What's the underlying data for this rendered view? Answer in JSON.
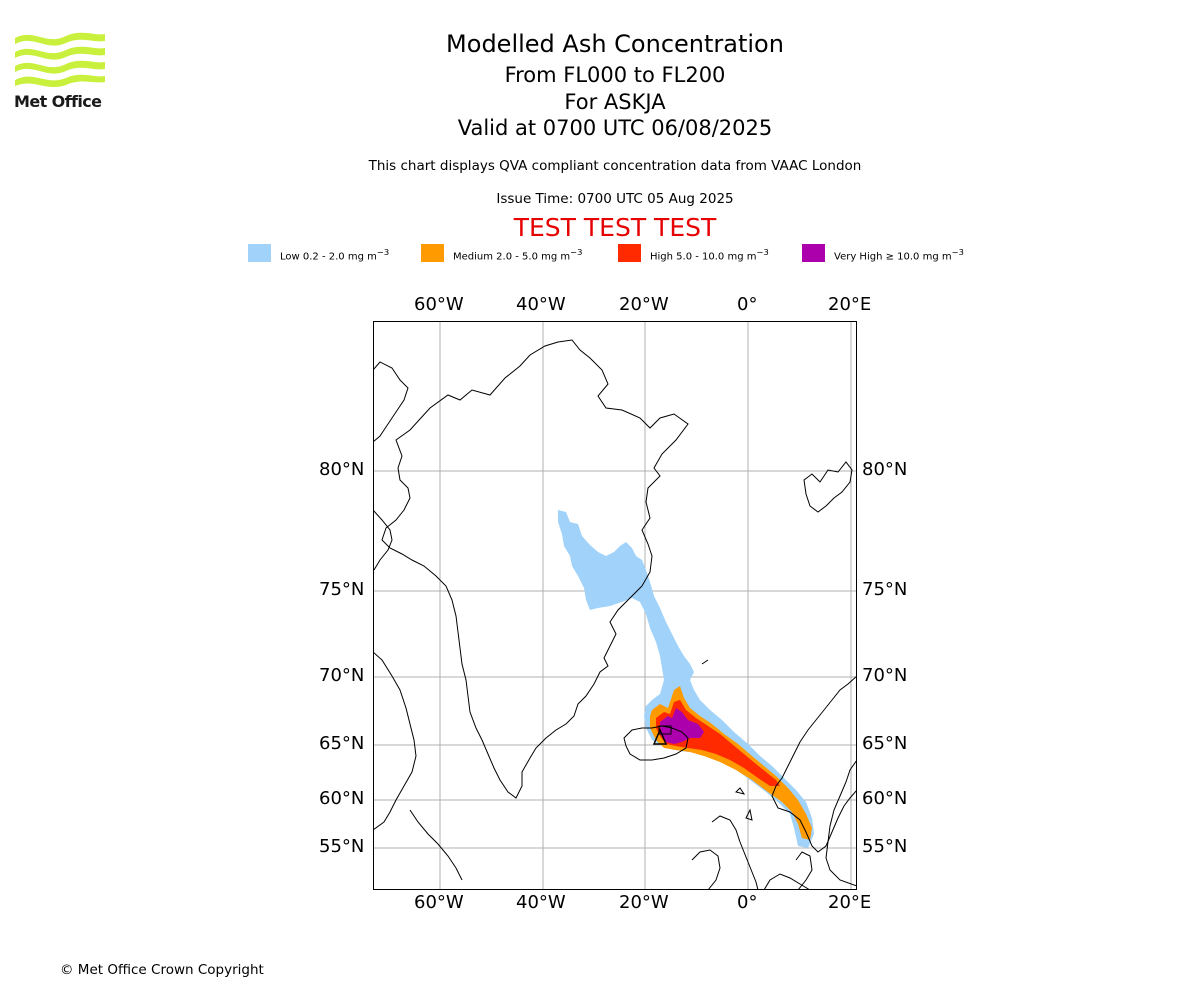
{
  "branding": {
    "logo_text": "Met Office",
    "logo_color": "#c8f03c"
  },
  "title": {
    "main": "Modelled Ash Concentration",
    "levels": "From FL000 to FL200",
    "volcano": "For ASKJA",
    "valid": "Valid at 0700 UTC 06/08/2025"
  },
  "subtitle": "This chart displays QVA compliant concentration data from VAAC London",
  "issue_time": "Issue Time: 0700 UTC 05 Aug 2025",
  "test_banner": {
    "text": "TEST TEST TEST",
    "color": "#e60000"
  },
  "legend": [
    {
      "label": "Low 0.2 - 2.0 mg m",
      "sup": "−3",
      "color": "#a0d2fa"
    },
    {
      "label": "Medium 2.0 - 5.0 mg m",
      "sup": "−3",
      "color": "#ff9a00"
    },
    {
      "label": "High 5.0 - 10.0 mg m",
      "sup": "−3",
      "color": "#ff2a00"
    },
    {
      "label": "Very High  ≥  10.0 mg m",
      "sup": "−3",
      "color": "#ad00ad"
    }
  ],
  "map": {
    "lon_ticks": [
      "60°W",
      "40°W",
      "20°W",
      "0°",
      "20°E"
    ],
    "lat_ticks": [
      "80°N",
      "75°N",
      "70°N",
      "65°N",
      "60°N",
      "55°N"
    ],
    "volcano_marker": "ASKJA"
  },
  "copyright": "© Met Office Crown Copyright"
}
